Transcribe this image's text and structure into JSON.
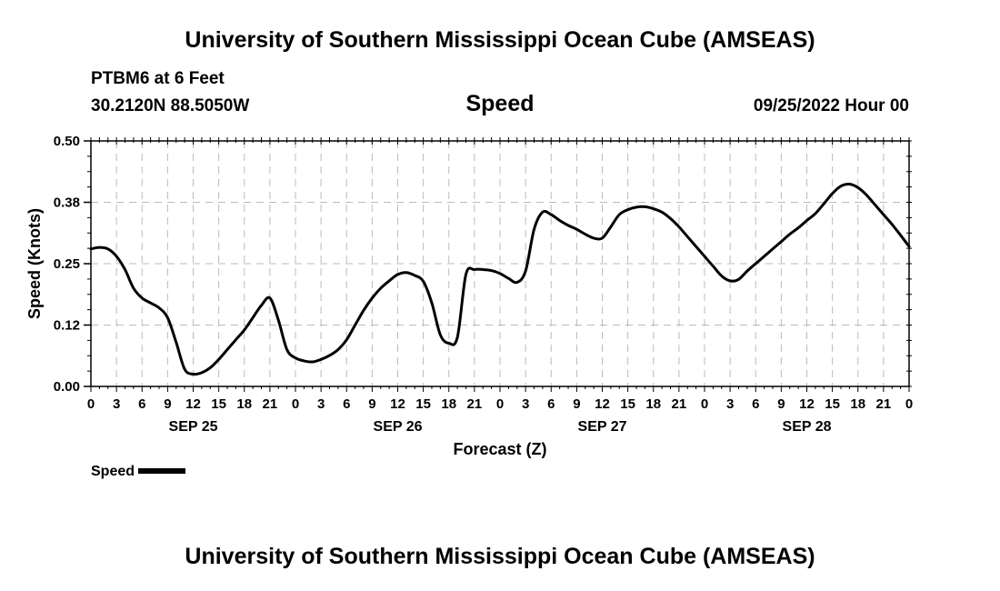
{
  "header": {
    "title": "University of Southern Mississippi Ocean Cube (AMSEAS)",
    "station": "PTBM6 at 6 Feet",
    "latlon": "30.2120N  88.5050W",
    "variable": "Speed",
    "datetime": "09/25/2022 Hour 00"
  },
  "footer": {
    "title": "University of Southern Mississippi Ocean Cube (AMSEAS)"
  },
  "legend": {
    "label": "Speed"
  },
  "colors": {
    "line": "#000000",
    "grid": "#bbbbbb"
  },
  "chart_data": {
    "type": "line",
    "title": "Speed",
    "xlabel": "Forecast (Z)",
    "ylabel": "Speed (Knots)",
    "ylim": [
      0,
      0.5
    ],
    "xlim": [
      0,
      96
    ],
    "grid": true,
    "yticks": [
      "0.00",
      "0.12",
      "0.25",
      "0.38",
      "0.50"
    ],
    "ytick_values": [
      0,
      0.125,
      0.25,
      0.375,
      0.5
    ],
    "xtick_hours": [
      0,
      3,
      6,
      9,
      12,
      15,
      18,
      21,
      24,
      27,
      30,
      33,
      36,
      39,
      42,
      45,
      48,
      51,
      54,
      57,
      60,
      63,
      66,
      69,
      72,
      75,
      78,
      81,
      84,
      87,
      90,
      93,
      96
    ],
    "xtick_labels": [
      "0",
      "3",
      "6",
      "9",
      "12",
      "15",
      "18",
      "21",
      "0",
      "3",
      "6",
      "9",
      "12",
      "15",
      "18",
      "21",
      "0",
      "3",
      "6",
      "9",
      "12",
      "15",
      "18",
      "21",
      "0",
      "3",
      "6",
      "9",
      "12",
      "15",
      "18",
      "21",
      "0"
    ],
    "date_labels": [
      {
        "hour": 12,
        "label": "SEP 25"
      },
      {
        "hour": 36,
        "label": "SEP 26"
      },
      {
        "hour": 60,
        "label": "SEP 27"
      },
      {
        "hour": 84,
        "label": "SEP 28"
      }
    ],
    "series": [
      {
        "name": "Speed",
        "x": [
          0,
          1,
          2,
          3,
          4,
          5,
          6,
          7,
          8,
          9,
          10,
          11,
          12,
          13,
          14,
          15,
          16,
          17,
          18,
          19,
          20,
          21,
          22,
          23,
          24,
          25,
          26,
          27,
          28,
          29,
          30,
          31,
          32,
          33,
          34,
          35,
          36,
          37,
          38,
          39,
          40,
          41,
          42,
          43,
          44,
          45,
          46,
          47,
          48,
          49,
          50,
          51,
          52,
          53,
          54,
          55,
          56,
          57,
          58,
          59,
          60,
          61,
          62,
          63,
          64,
          65,
          66,
          67,
          68,
          69,
          70,
          71,
          72,
          73,
          74,
          75,
          76,
          77,
          78,
          79,
          80,
          81,
          82,
          83,
          84,
          85,
          86,
          87,
          88,
          89,
          90,
          91,
          92,
          93,
          94,
          95,
          96
        ],
        "values": [
          0.28,
          0.283,
          0.28,
          0.265,
          0.238,
          0.2,
          0.18,
          0.17,
          0.16,
          0.14,
          0.09,
          0.035,
          0.025,
          0.028,
          0.038,
          0.055,
          0.075,
          0.095,
          0.115,
          0.14,
          0.165,
          0.18,
          0.135,
          0.075,
          0.058,
          0.052,
          0.05,
          0.055,
          0.063,
          0.075,
          0.095,
          0.125,
          0.155,
          0.18,
          0.2,
          0.215,
          0.228,
          0.232,
          0.226,
          0.214,
          0.17,
          0.105,
          0.088,
          0.1,
          0.228,
          0.238,
          0.238,
          0.236,
          0.23,
          0.22,
          0.212,
          0.235,
          0.32,
          0.355,
          0.35,
          0.338,
          0.328,
          0.32,
          0.31,
          0.302,
          0.302,
          0.325,
          0.35,
          0.36,
          0.365,
          0.366,
          0.362,
          0.355,
          0.342,
          0.325,
          0.305,
          0.285,
          0.265,
          0.245,
          0.225,
          0.215,
          0.218,
          0.235,
          0.25,
          0.265,
          0.28,
          0.295,
          0.31,
          0.323,
          0.338,
          0.352,
          0.372,
          0.393,
          0.408,
          0.412,
          0.405,
          0.39,
          0.37,
          0.35,
          0.33,
          0.308,
          0.285
        ]
      }
    ]
  }
}
